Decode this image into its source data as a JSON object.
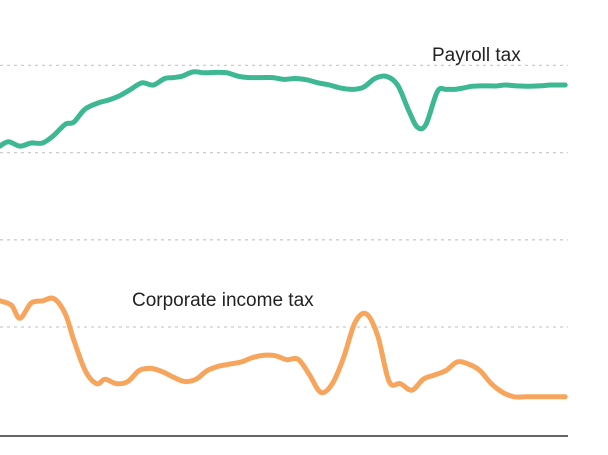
{
  "chart_data": {
    "type": "line",
    "title": "",
    "xlabel": "",
    "ylabel": "",
    "x_range": [
      0,
      100
    ],
    "ylim": [
      0,
      100
    ],
    "gridlines_y": [
      25,
      45,
      65,
      85
    ],
    "grid": true,
    "series": [
      {
        "name": "Payroll tax",
        "color": "#3db892",
        "x": [
          0,
          1.5,
          3.5,
          5.5,
          7.5,
          9.5,
          11.5,
          13,
          15,
          17.5,
          19,
          21,
          23,
          25,
          27,
          29,
          30.5,
          32,
          34,
          36,
          38,
          40,
          42,
          44,
          46,
          48,
          50,
          52,
          54,
          56,
          58,
          60,
          62,
          64,
          66,
          68,
          70,
          72,
          73.5,
          75,
          77,
          78.5,
          80,
          81.5,
          83,
          84.5,
          86,
          87.5,
          89,
          91,
          93,
          95,
          97,
          99.5
        ],
        "values": [
          66.5,
          67.5,
          66.5,
          67.2,
          67.2,
          69,
          71.5,
          72,
          75,
          76.5,
          77,
          78,
          79.5,
          81,
          80.5,
          82,
          82.2,
          82.5,
          83.5,
          83.3,
          83.4,
          83.3,
          82.5,
          82.2,
          82.2,
          82.2,
          81.8,
          82,
          81.7,
          81,
          80.5,
          79.8,
          79.5,
          80,
          82,
          82.5,
          80.5,
          74.5,
          70.8,
          71.5,
          79,
          79.5,
          79.5,
          79.8,
          80.2,
          80.3,
          80.3,
          80.3,
          80.5,
          80.3,
          80.2,
          80.3,
          80.5,
          80.5
        ]
      },
      {
        "name": "Corporate income tax",
        "color": "#f7a55c",
        "x": [
          0,
          2,
          3.5,
          5.5,
          7.5,
          9.5,
          11.5,
          13,
          15,
          17,
          18.5,
          20.5,
          22.5,
          24.5,
          26.5,
          28.5,
          30.5,
          32.5,
          34.5,
          36.5,
          38.5,
          40.5,
          42.5,
          44.5,
          46.5,
          48.5,
          50.5,
          52.5,
          54.5,
          56.5,
          58.5,
          60.5,
          62.5,
          64.5,
          66.5,
          68.5,
          70.5,
          72.5,
          74.5,
          76.5,
          78.5,
          80.5,
          82.5,
          84.5,
          86.5,
          88.5,
          90.5,
          92.5,
          94.5,
          96.5,
          98.5,
          99.5
        ],
        "values": [
          31,
          30,
          27,
          30.5,
          31,
          31.5,
          28,
          22,
          15,
          12,
          13,
          12,
          12.5,
          15,
          15.5,
          14.8,
          13.5,
          12.5,
          13,
          15,
          16,
          16.5,
          17,
          18,
          18.5,
          18.4,
          17.5,
          17.6,
          14,
          10,
          12,
          18,
          26,
          28,
          23,
          12.5,
          12,
          10.5,
          13,
          14,
          15,
          17,
          16.5,
          15,
          12,
          10,
          9,
          9,
          9,
          9,
          9,
          9
        ]
      }
    ],
    "legend": "inline labels above each line"
  }
}
